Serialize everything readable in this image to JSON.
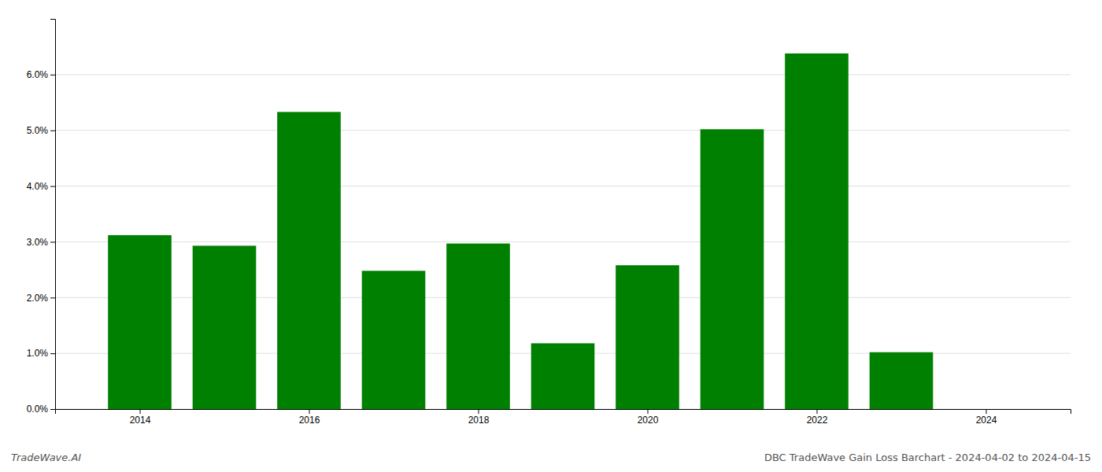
{
  "chart_data": {
    "type": "bar",
    "title": "DBC TradeWave Gain Loss Barchart - 2024-04-02 to 2024-04-15",
    "annotations": [
      "TradeWave.AI"
    ],
    "x": [
      2014,
      2015,
      2016,
      2017,
      2018,
      2019,
      2020,
      2021,
      2022,
      2023
    ],
    "values": [
      3.12,
      2.93,
      5.33,
      2.48,
      2.97,
      1.18,
      2.58,
      5.02,
      6.38,
      1.02
    ],
    "color": "#008000",
    "xlim": [
      2013.0,
      2025.0
    ],
    "xticks": [
      2014,
      2016,
      2018,
      2020,
      2022,
      2024
    ],
    "ylim": [
      0,
      7.0
    ],
    "yticks": [
      {
        "value": 0.0,
        "label": "0.0%"
      },
      {
        "value": 1.0,
        "label": "1.0%"
      },
      {
        "value": 2.0,
        "label": "2.0%"
      },
      {
        "value": 3.0,
        "label": "3.0%"
      },
      {
        "value": 4.0,
        "label": "4.0%"
      },
      {
        "value": 5.0,
        "label": "5.0%"
      },
      {
        "value": 6.0,
        "label": "6.0%"
      }
    ],
    "grid": true
  }
}
